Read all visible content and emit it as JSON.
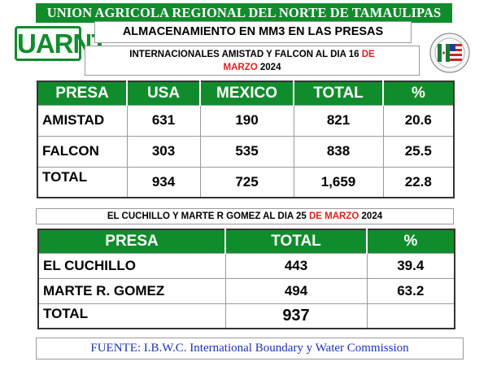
{
  "header": {
    "title": "UNION AGRICOLA REGIONAL DEL NORTE DE TAMAULIPAS",
    "logo_text": "UARNT",
    "subtitle": "ALMACENAMIENTO EN MM3 EN LAS PRESAS",
    "seal_icon": "us-mexico-flags-seal-icon"
  },
  "section1": {
    "caption_part1": "INTERNACIONALES AMISTAD Y FALCON AL DIA  16 ",
    "caption_red1": "DE",
    "caption_red2": "MARZO",
    "caption_part2": " 2024",
    "headers": [
      "PRESA",
      "USA",
      "MEXICO",
      "TOTAL",
      "%"
    ],
    "rows": [
      {
        "presa": "AMISTAD",
        "usa": "631",
        "mexico": "190",
        "total": "821",
        "pct": "20.6"
      },
      {
        "presa": "FALCON",
        "usa": "303",
        "mexico": "535",
        "total": "838",
        "pct": "25.5"
      },
      {
        "presa": "TOTAL",
        "usa": "934",
        "mexico": "725",
        "total": "1,659",
        "pct": "22.8"
      }
    ]
  },
  "section2": {
    "caption_part1": "EL CUCHILLO Y MARTE R GOMEZ AL DIA 25 ",
    "caption_red": "DE MARZO",
    "caption_part2": " 2024",
    "headers": [
      "PRESA",
      "TOTAL",
      "%"
    ],
    "rows": [
      {
        "presa": "EL CUCHILLO",
        "total": "443",
        "pct": "39.4"
      },
      {
        "presa": "MARTE R. GOMEZ",
        "total": "494",
        "pct": "63.2"
      },
      {
        "presa": "TOTAL",
        "total": "937",
        "pct": ""
      }
    ]
  },
  "footer": {
    "source": "FUENTE: I.B.W.C. International Boundary y Water Commission"
  },
  "colors": {
    "brand_green": "#118c2c",
    "accent_red": "#e02020",
    "source_blue": "#1c34b8"
  }
}
